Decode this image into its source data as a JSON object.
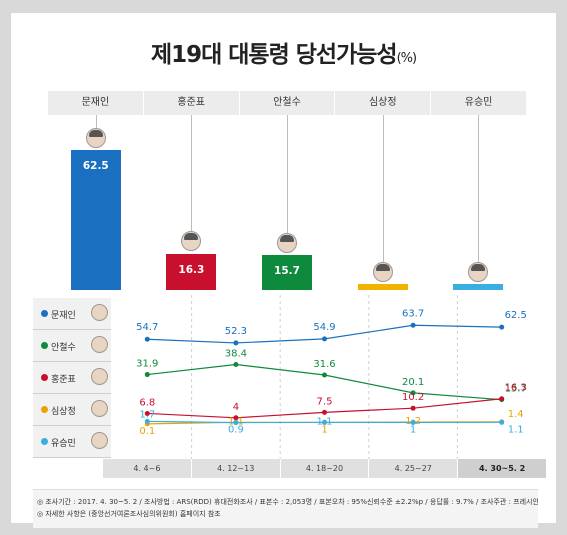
{
  "title": "제19대 대통령 당선가능성",
  "title_unit": "(%)",
  "candidates": [
    {
      "name": "문재인",
      "value": 62.5,
      "color": "#1a6fc0"
    },
    {
      "name": "홍준표",
      "value": 16.3,
      "color": "#c8102e"
    },
    {
      "name": "안철수",
      "value": 15.7,
      "color": "#0e8a3c"
    },
    {
      "name": "심상정",
      "value": 1.4,
      "color": "#f0b400"
    },
    {
      "name": "유승민",
      "value": 1.1,
      "color": "#3aaee0"
    }
  ],
  "legend": [
    {
      "name": "문재인",
      "color": "#1a6fc0"
    },
    {
      "name": "안철수",
      "color": "#0e8a3c"
    },
    {
      "name": "홍준표",
      "color": "#c8102e"
    },
    {
      "name": "심상정",
      "color": "#e8a400"
    },
    {
      "name": "유승민",
      "color": "#3aaee0"
    }
  ],
  "chart_data": [
    {
      "type": "bar",
      "categories": [
        "문재인",
        "홍준표",
        "안철수",
        "심상정",
        "유승민"
      ],
      "values": [
        62.5,
        16.3,
        15.7,
        1.4,
        1.1
      ],
      "ylim": [
        0,
        62.5
      ]
    },
    {
      "type": "line",
      "categories": [
        "4. 4~6",
        "4. 12~13",
        "4. 18~20",
        "4. 25~27",
        "4. 30~5. 2"
      ],
      "ylim": [
        0,
        70
      ],
      "series": [
        {
          "name": "문재인",
          "color": "#1a6fc0",
          "values": [
            54.7,
            52.3,
            54.9,
            63.7,
            62.5
          ]
        },
        {
          "name": "안철수",
          "color": "#0e8a3c",
          "values": [
            31.9,
            38.4,
            31.6,
            20.1,
            15.7
          ]
        },
        {
          "name": "홍준표",
          "color": "#c8102e",
          "values": [
            6.8,
            4.0,
            7.5,
            10.2,
            16.3
          ]
        },
        {
          "name": "심상정",
          "color": "#e8a400",
          "values": [
            0.1,
            1.1,
            1.0,
            1.2,
            1.4
          ]
        },
        {
          "name": "유승민",
          "color": "#3aaee0",
          "values": [
            1.7,
            0.9,
            1.1,
            1.0,
            1.1
          ]
        }
      ]
    }
  ],
  "notes": [
    "◎ 조사기간 : 2017. 4. 30~5. 2 / 조사방법 : ARS(RDD) 휴대전화조사 / 표본수 : 2,053명 / 표본오차 : 95%신뢰수준 ±2.2%p / 응답률 : 9.7% / 조사주관 : 프레시안·리서치뷰",
    "◎ 자세한 사항은 (중앙선거여론조사심의위원회) 홈페이지 참조"
  ]
}
